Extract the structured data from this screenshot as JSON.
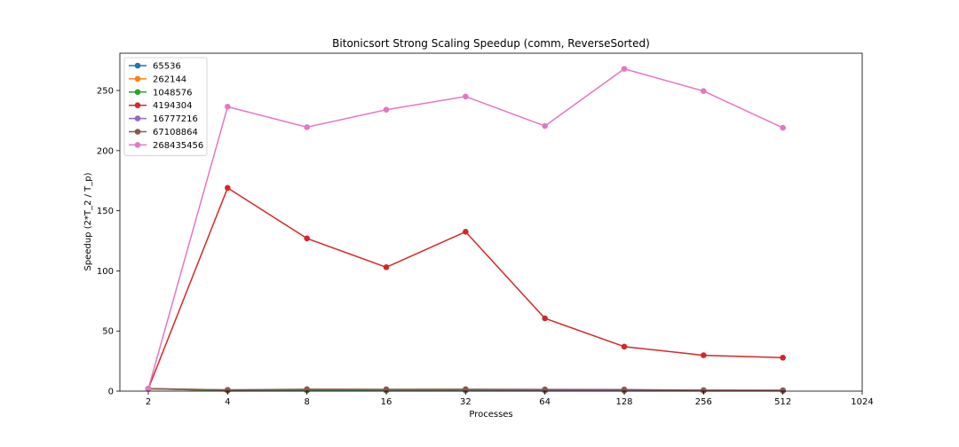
{
  "chart_data": {
    "type": "line",
    "title": "Bitonicsort Strong Scaling Speedup (comm, ReverseSorted)",
    "xlabel": "Processes",
    "ylabel": "Speedup (2*T_2 / T_p)",
    "x_scale": "log2",
    "x_ticks": [
      2,
      4,
      8,
      16,
      32,
      64,
      128,
      256,
      512,
      1024
    ],
    "x_tick_labels": [
      "2",
      "4",
      "8",
      "16",
      "32",
      "64",
      "128",
      "256",
      "512",
      "1024"
    ],
    "y_ticks": [
      0,
      50,
      100,
      150,
      200,
      250
    ],
    "y_tick_labels": [
      "0",
      "50",
      "100",
      "150",
      "200",
      "250"
    ],
    "xlim": [
      1.56,
      1024
    ],
    "ylim": [
      0,
      281
    ],
    "grid": false,
    "legend_position": "upper-left",
    "x": [
      2,
      4,
      8,
      16,
      32,
      64,
      128,
      256,
      512
    ],
    "series": [
      {
        "name": "65536",
        "color": "#1f77b4",
        "values": [
          2.0,
          0.3,
          0.5,
          0.4,
          0.4,
          0.3,
          0.3,
          0.2,
          0.2
        ]
      },
      {
        "name": "262144",
        "color": "#ff7f0e",
        "values": [
          2.0,
          0.4,
          0.5,
          0.5,
          0.5,
          0.4,
          0.4,
          0.3,
          0.3
        ]
      },
      {
        "name": "1048576",
        "color": "#2ca02c",
        "values": [
          2.0,
          0.5,
          0.6,
          0.6,
          0.6,
          0.5,
          0.5,
          0.4,
          0.3
        ]
      },
      {
        "name": "4194304",
        "color": "#d62728",
        "values": [
          2.0,
          169.0,
          127.0,
          103.0,
          132.5,
          60.5,
          37.0,
          29.8,
          27.8
        ]
      },
      {
        "name": "16777216",
        "color": "#9467bd",
        "values": [
          2.0,
          1.0,
          1.2,
          1.1,
          1.1,
          0.9,
          0.8,
          0.6,
          0.5
        ]
      },
      {
        "name": "67108864",
        "color": "#8c564b",
        "values": [
          2.0,
          1.0,
          1.6,
          1.5,
          1.6,
          1.4,
          1.3,
          0.8,
          0.7
        ]
      },
      {
        "name": "268435456",
        "color": "#e377c2",
        "values": [
          2.0,
          236.5,
          219.5,
          234.0,
          245.0,
          220.5,
          268.0,
          249.5,
          219.0
        ]
      }
    ]
  }
}
